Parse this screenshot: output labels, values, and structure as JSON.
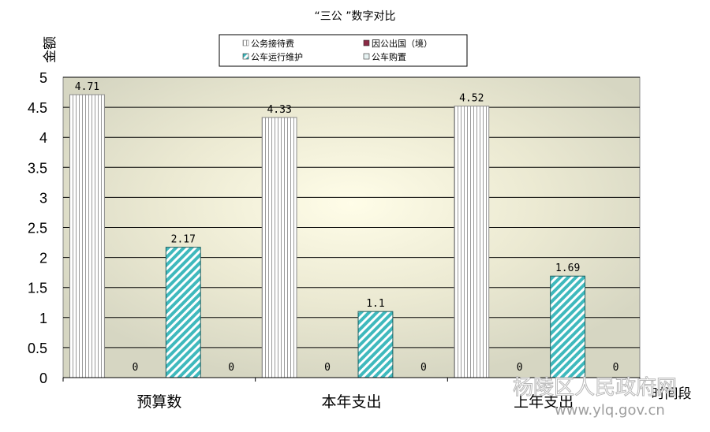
{
  "chart_data": {
    "type": "bar",
    "title": "“三公 ”数字对比",
    "ylabel": "金额",
    "xlabel": "时间段",
    "ylim": [
      0,
      5
    ],
    "yticks": [
      "0",
      "0.5",
      "1",
      "1.5",
      "2",
      "2.5",
      "3",
      "3.5",
      "4",
      "4.5",
      "5"
    ],
    "categories": [
      "预算数",
      "本年支出",
      "上年支出"
    ],
    "series": [
      {
        "name": "公务接待费",
        "values": [
          4.71,
          4.33,
          4.52
        ],
        "labels": [
          "4.71",
          "4.33",
          "4.52"
        ]
      },
      {
        "name": "因公出国（境）",
        "values": [
          0,
          0,
          0
        ],
        "labels": [
          "0",
          "0",
          "0"
        ]
      },
      {
        "name": "公车运行维护",
        "values": [
          2.17,
          1.1,
          1.69
        ],
        "labels": [
          "2.17",
          "1.1",
          "1.69"
        ]
      },
      {
        "name": "公车购置",
        "values": [
          0,
          0,
          0
        ],
        "labels": [
          "0",
          "0",
          "0"
        ]
      }
    ],
    "colors": {
      "plot_background": "#d9d9c6",
      "glow": "#fffde8",
      "grid": "#000000",
      "series_0": "#ffffff",
      "series_1": "#8b2a45",
      "series_2": "#3fb9bd",
      "series_3": "#e6f2f2"
    },
    "grid": true,
    "legend_position": "top-center"
  },
  "watermark": {
    "line1": "杨陵区人民政府网",
    "line2": "www.ylq.gov.cn"
  }
}
